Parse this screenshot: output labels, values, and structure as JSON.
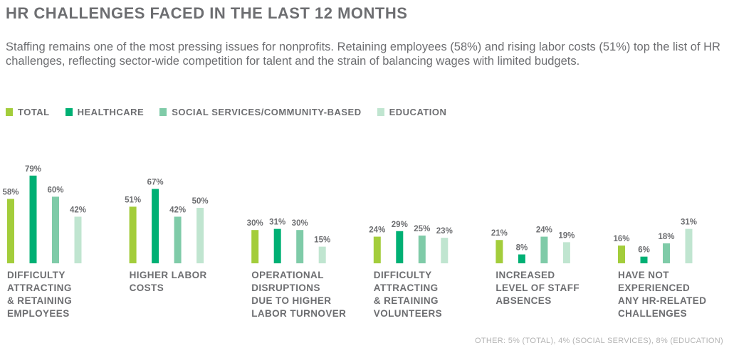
{
  "chart_data": {
    "type": "bar",
    "title": "HR CHALLENGES FACED IN THE LAST 12 MONTHS",
    "subtitle": "Staffing remains one of the most pressing issues for nonprofits. Retaining employees (58%) and rising labor costs (51%) top the list of HR challenges, reflecting sector-wide competition for talent and the strain of balancing wages with limited budgets.",
    "categories": [
      "DIFFICULTY\nATTRACTING\n& RETAINING\nEMPLOYEES",
      "HIGHER LABOR\nCOSTS",
      "OPERATIONAL\nDISRUPTIONS\nDUE TO HIGHER\nLABOR TURNOVER",
      "DIFFICULTY\nATTRACTING\n& RETAINING\nVOLUNTEERS",
      "INCREASED\nLEVEL OF STAFF\nABSENCES",
      "HAVE NOT\nEXPERIENCED\nANY HR-RELATED\nCHALLENGES"
    ],
    "series": [
      {
        "name": "TOTAL",
        "color": "#a3cd3b",
        "values": [
          58,
          51,
          30,
          24,
          21,
          16
        ]
      },
      {
        "name": "HEALTHCARE",
        "color": "#00b074",
        "values": [
          79,
          67,
          31,
          29,
          8,
          6
        ]
      },
      {
        "name": "SOCIAL SERVICES/COMMUNITY-BASED",
        "color": "#7fcba8",
        "values": [
          60,
          42,
          30,
          25,
          24,
          18
        ]
      },
      {
        "name": "EDUCATION",
        "color": "#c0e5d0",
        "values": [
          42,
          50,
          15,
          23,
          19,
          31
        ]
      }
    ],
    "value_format": "percent",
    "ylim": [
      0,
      100
    ],
    "grid": false,
    "legend_placement": "top-left",
    "note": "OTHER: 5% (TOTAL), 4% (SOCIAL SERVICES), 8% (EDUCATION)"
  }
}
